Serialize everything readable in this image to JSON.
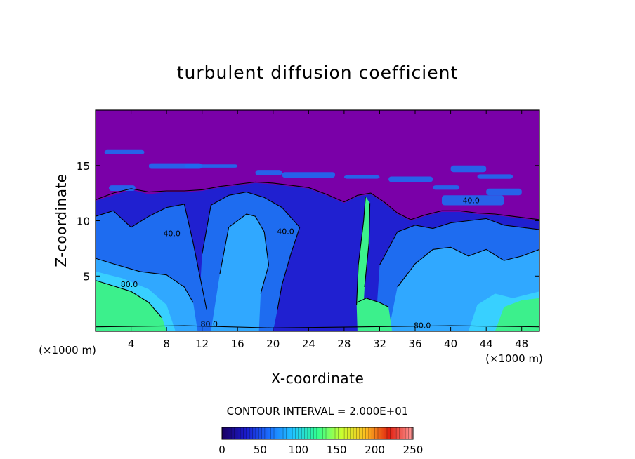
{
  "chart_data": {
    "type": "heatmap",
    "title": "turbulent diffusion coefficient",
    "xlabel": "X-coordinate",
    "ylabel": "Z-coordinate",
    "x_unit": "(×1000 m)",
    "z_unit": "(×1000 m)",
    "xlim": [
      0,
      50
    ],
    "ylim": [
      0,
      20
    ],
    "x_ticks": [
      "4",
      "8",
      "12",
      "16",
      "20",
      "24",
      "28",
      "32",
      "36",
      "40",
      "44",
      "48"
    ],
    "y_ticks": [
      "5",
      "10",
      "15"
    ],
    "contour_interval_text": "CONTOUR INTERVAL = 2.000E+01",
    "contour_interval": 20,
    "contour_labels": [
      {
        "text": "40.0",
        "x": 8.6,
        "z": 8.6
      },
      {
        "text": "40.0",
        "x": 21.4,
        "z": 8.8
      },
      {
        "text": "40.0",
        "x": 42.3,
        "z": 11.6
      },
      {
        "text": "80.0",
        "x": 3.8,
        "z": 4.0
      },
      {
        "text": "80.0",
        "x": 12.8,
        "z": 0.4
      },
      {
        "text": "80.0",
        "x": 36.8,
        "z": 0.3
      }
    ],
    "colorbar": {
      "ticks": [
        "0",
        "50",
        "100",
        "150",
        "200",
        "250"
      ],
      "min": 0,
      "max": 250,
      "colors": [
        "#1a0060",
        "#1a1acc",
        "#1a70ff",
        "#20c8ff",
        "#30ff90",
        "#c8ff30",
        "#ffc020",
        "#e02010",
        "#ff9a9a"
      ]
    },
    "field_colors": {
      "background": "#7a00a8",
      "low": "#2020d0",
      "mid": "#1e6cf0",
      "high": "#30a8ff",
      "bright": "#38d0ff",
      "peak": "#3cf08c"
    }
  }
}
